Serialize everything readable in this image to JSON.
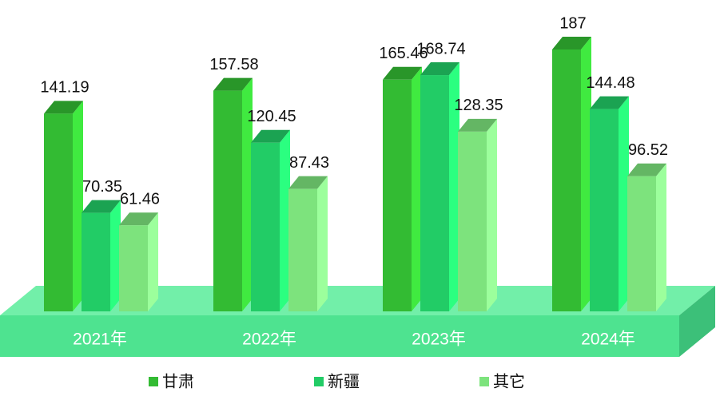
{
  "chart_data": {
    "type": "bar3d",
    "categories": [
      "2021年",
      "2022年",
      "2023年",
      "2024年"
    ],
    "series": [
      {
        "name": "甘肃",
        "color": "#33bb33",
        "values": [
          141.19,
          157.58,
          165.46,
          187
        ]
      },
      {
        "name": "新疆",
        "color": "#22cc66",
        "values": [
          70.35,
          120.45,
          168.74,
          144.48
        ]
      },
      {
        "name": "其它",
        "color": "#7de37d",
        "values": [
          61.46,
          87.43,
          128.35,
          96.52
        ]
      }
    ]
  }
}
